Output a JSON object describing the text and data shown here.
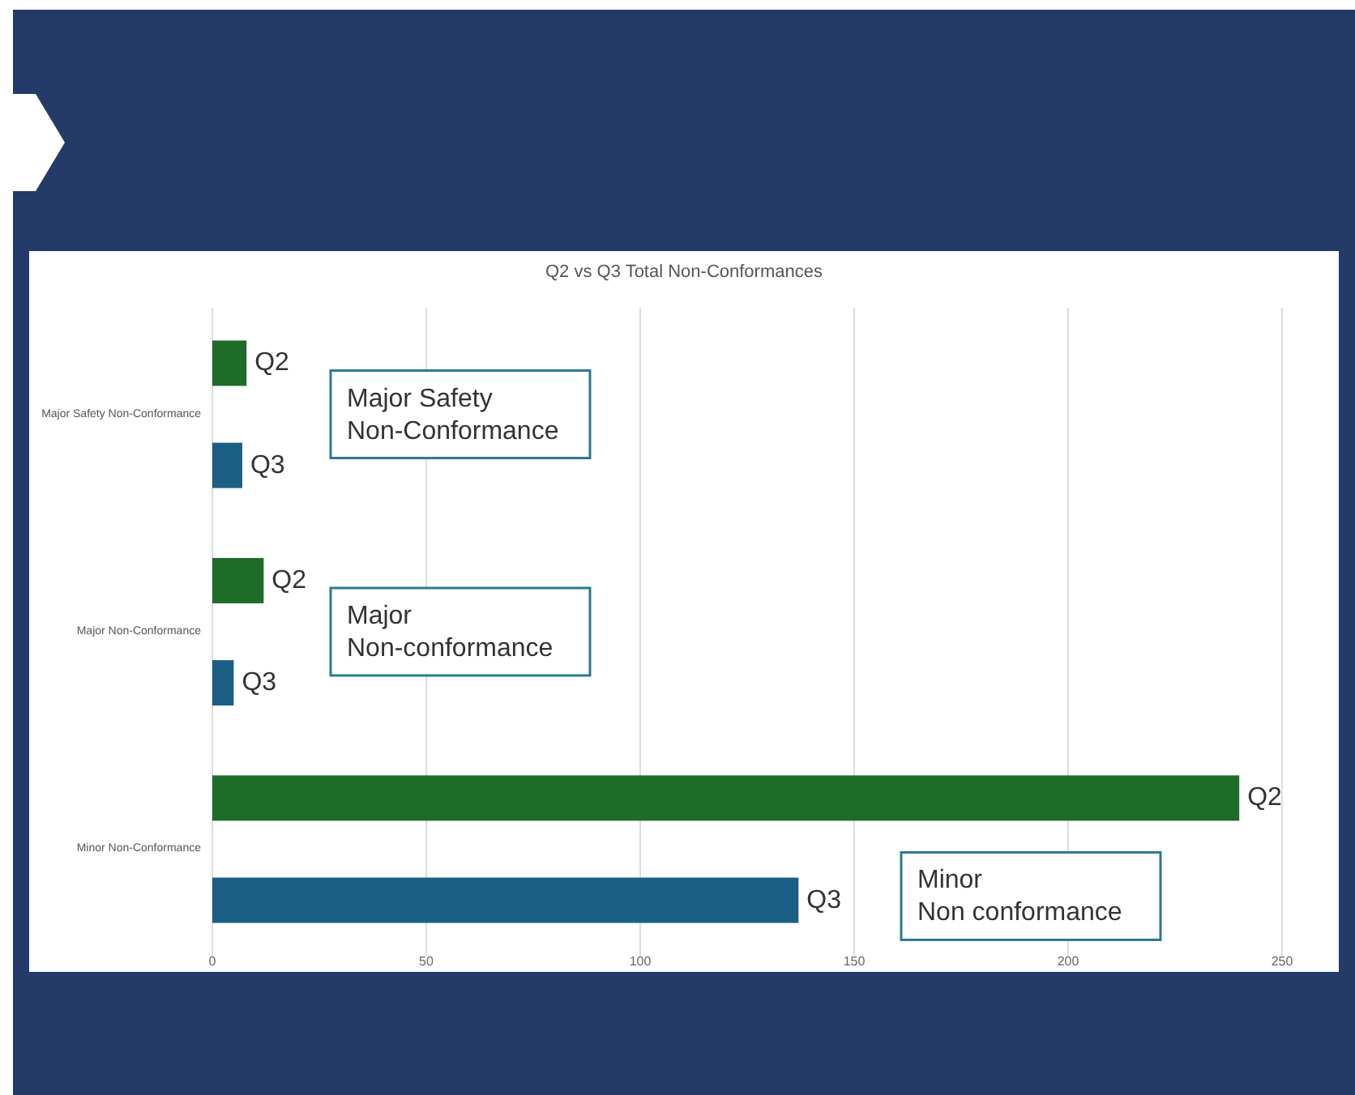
{
  "chart_data": {
    "type": "bar",
    "orientation": "horizontal",
    "title": "Q2 vs Q3 Total Non-Conformances",
    "categories": [
      "Major Safety Non-Conformance",
      "Major Non-Conformance",
      "Minor Non-Conformance"
    ],
    "series": [
      {
        "name": "Q2",
        "color": "#1e6b2a",
        "values": [
          8,
          12,
          240
        ]
      },
      {
        "name": "Q3",
        "color": "#1b5f85",
        "values": [
          7,
          5,
          137
        ]
      }
    ],
    "xlim": [
      0,
      250
    ],
    "xticks": [
      0,
      50,
      100,
      150,
      200,
      250
    ],
    "grid": "x",
    "annotations": [
      "Major Safety\nNon-Conformance",
      "Major\nNon-conformance",
      "Minor\nNon conformance"
    ]
  }
}
